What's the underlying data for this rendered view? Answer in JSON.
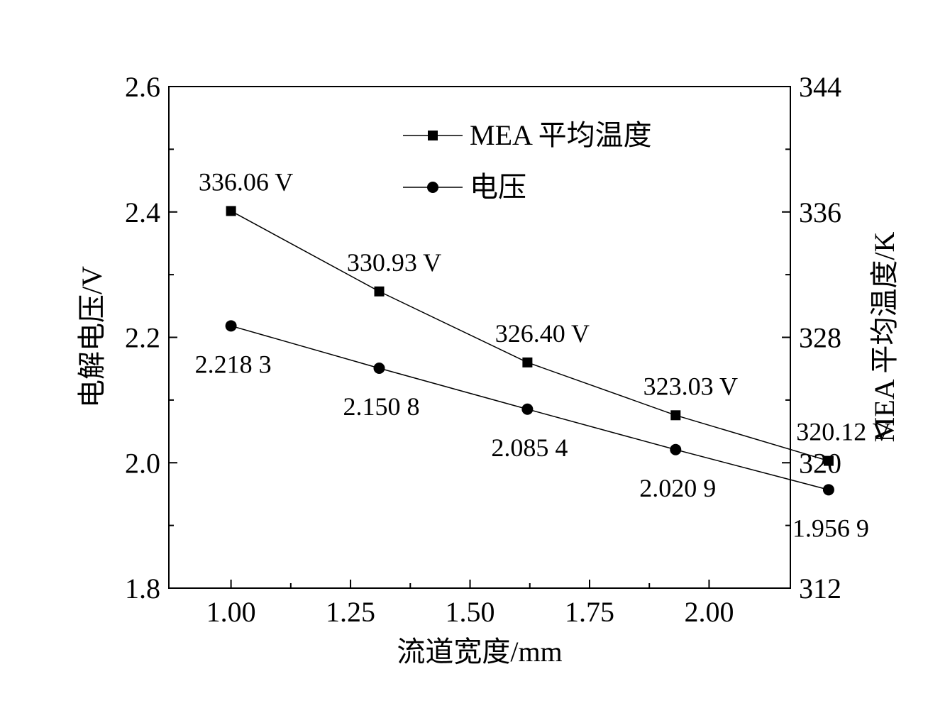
{
  "chart_data": {
    "type": "line",
    "x_ticks": [
      "1.00",
      "1.25",
      "1.50",
      "1.75",
      "2.00"
    ],
    "xlim": [
      0.87,
      2.17
    ],
    "xlabel": "流道宽度/mm",
    "y_left": {
      "label": "电解电压/V",
      "lim": [
        1.8,
        2.6
      ],
      "ticks": [
        "1.8",
        "2.0",
        "2.2",
        "2.4",
        "2.6"
      ]
    },
    "y_right": {
      "label": "MEA 平均温度/K",
      "lim": [
        312,
        344
      ],
      "ticks": [
        "312",
        "320",
        "328",
        "336",
        "344"
      ]
    },
    "series": [
      {
        "name": "MEA 平均温度",
        "axis": "right",
        "marker": "square",
        "x": [
          1.0,
          1.31,
          1.62,
          1.93,
          2.25
        ],
        "y": [
          336.06,
          330.93,
          326.4,
          323.03,
          320.12
        ],
        "labels": [
          "336.06 V",
          "330.93 V",
          "326.40 V",
          "323.03 V",
          "320.12 V"
        ]
      },
      {
        "name": "电压",
        "axis": "left",
        "marker": "circle",
        "x": [
          1.0,
          1.31,
          1.62,
          1.93,
          2.25
        ],
        "y": [
          2.2183,
          2.1508,
          2.0854,
          2.0209,
          1.9569
        ],
        "labels": [
          "2.218 3",
          "2.150 8",
          "2.085 4",
          "2.020 9",
          "1.956 9"
        ]
      }
    ],
    "legend_position": "top-right",
    "grid": false
  }
}
